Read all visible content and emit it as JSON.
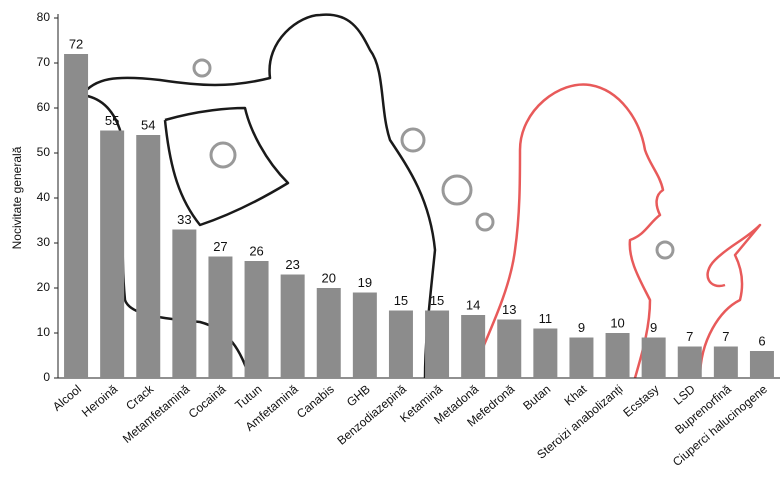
{
  "chart_data": {
    "type": "bar",
    "y_label": "Nocivitate generală",
    "categories": [
      "Alcool",
      "Heroină",
      "Crack",
      "Metamfetamină",
      "Cocaină",
      "Tutun",
      "Amfetamină",
      "Canabis",
      "GHB",
      "Benzodiazepină",
      "Ketamină",
      "Metadonă",
      "Mefedronă",
      "Butan",
      "Khat",
      "Steroizi anabolizanți",
      "Ecstasy",
      "LSD",
      "Buprenorfină",
      "Ciuperci halucinogene"
    ],
    "values": [
      72,
      55,
      54,
      33,
      27,
      26,
      23,
      20,
      19,
      15,
      15,
      14,
      13,
      11,
      9,
      10,
      9,
      7,
      7,
      6
    ],
    "color": "#8c8c8c",
    "ylim": [
      0,
      80
    ],
    "yticks": [
      0,
      10,
      20,
      30,
      40,
      50,
      60,
      70,
      80
    ],
    "grid": false
  }
}
